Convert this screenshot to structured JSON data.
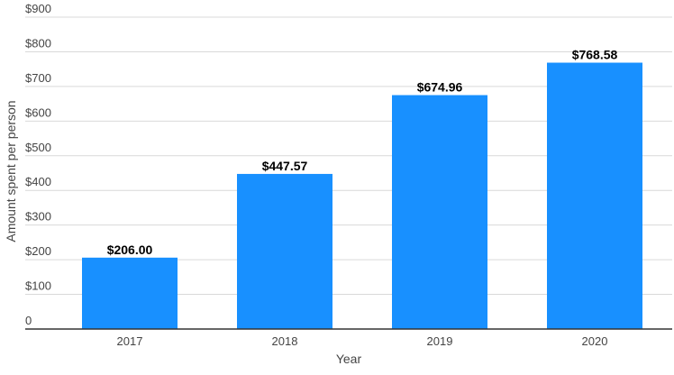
{
  "chart_data": {
    "type": "bar",
    "title": "",
    "xlabel": "Year",
    "ylabel": "Amount spent per person",
    "categories": [
      "2017",
      "2018",
      "2019",
      "2020"
    ],
    "values": [
      206.0,
      447.57,
      674.96,
      768.58
    ],
    "data_labels": [
      "$206.00",
      "$447.57",
      "$674.96",
      "$768.58"
    ],
    "yticks": [
      0,
      100,
      200,
      300,
      400,
      500,
      600,
      700,
      800,
      900
    ],
    "ytick_labels": [
      "0",
      "$100",
      "$200",
      "$300",
      "$400",
      "$500",
      "$600",
      "$700",
      "$800",
      "$900"
    ],
    "ylim": [
      0,
      900
    ],
    "grid": true,
    "legend": "none",
    "bar_color": "#1890ff",
    "grid_color": "#d9d9d9",
    "axis_color": "#333333",
    "text_color": "#444444",
    "label_color": "#000000"
  }
}
